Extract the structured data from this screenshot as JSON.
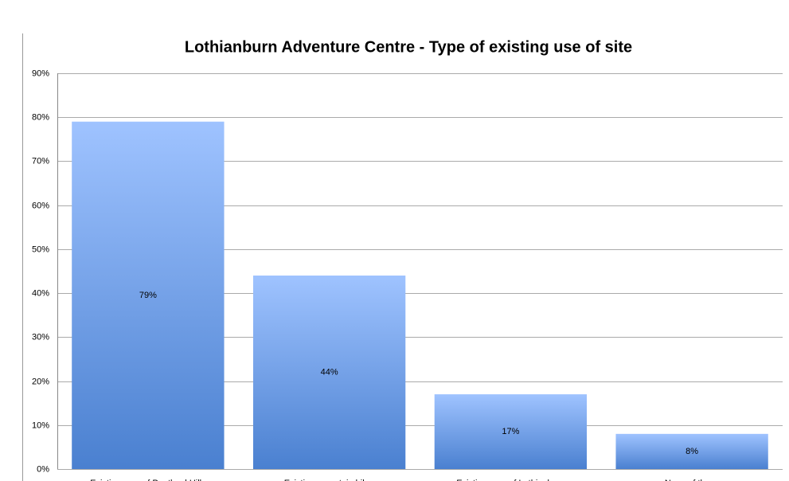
{
  "chart_data": {
    "type": "bar",
    "title": "Lothianburn Adventure Centre - Type of existing use of site",
    "categories": [
      "Existing user of Pentland Hills",
      "Existing mountain biker",
      "Existing user of Lothianburn",
      "None of these"
    ],
    "values": [
      79,
      44,
      17,
      8
    ],
    "value_labels": [
      "79%",
      "44%",
      "17%",
      "8%"
    ],
    "color": "#5b8fdc",
    "ylim": [
      0,
      90
    ],
    "yticks": [
      {
        "value": 0,
        "label": "0%"
      },
      {
        "value": 10,
        "label": "10%"
      },
      {
        "value": 20,
        "label": "20%"
      },
      {
        "value": 30,
        "label": "30%"
      },
      {
        "value": 40,
        "label": "40%"
      },
      {
        "value": 50,
        "label": "50%"
      },
      {
        "value": 60,
        "label": "60%"
      },
      {
        "value": 70,
        "label": "70%"
      },
      {
        "value": 80,
        "label": "80%"
      },
      {
        "value": 90,
        "label": "90%"
      }
    ],
    "grid": true
  }
}
